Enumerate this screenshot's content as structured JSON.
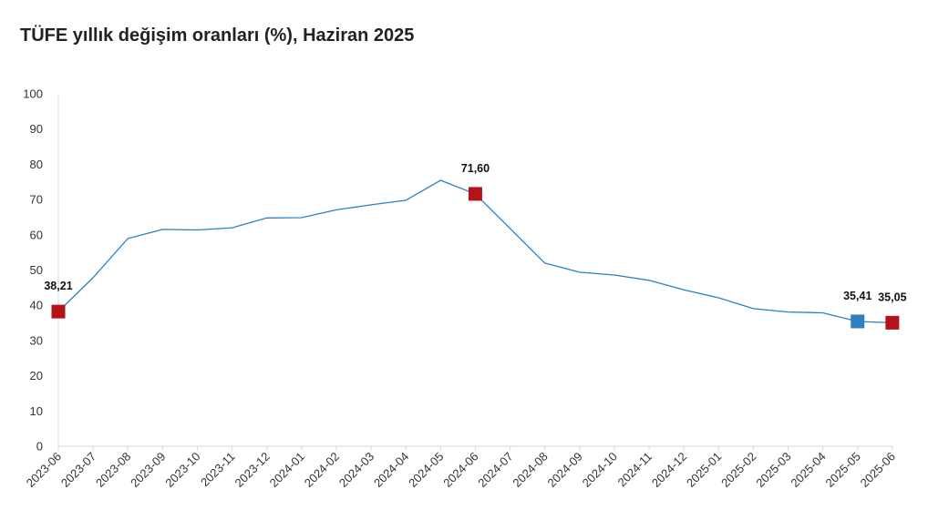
{
  "colors": {
    "line": "#2f7fc1",
    "highlight_red": "#b5121b",
    "highlight_blue": "#2f7fc1",
    "axis": "#d9d9d9"
  },
  "chart_data": {
    "type": "line",
    "title": "TÜFE yıllık değişim oranları (%), Haziran 2025",
    "xlabel": "",
    "ylabel": "",
    "ylim": [
      0,
      100
    ],
    "yticks": [
      0,
      10,
      20,
      30,
      40,
      50,
      60,
      70,
      80,
      90,
      100
    ],
    "grid": false,
    "categories": [
      "2023-06",
      "2023-07",
      "2023-08",
      "2023-09",
      "2023-10",
      "2023-11",
      "2023-12",
      "2024-01",
      "2024-02",
      "2024-03",
      "2024-04",
      "2024-05",
      "2024-06",
      "2024-07",
      "2024-08",
      "2024-09",
      "2024-10",
      "2024-11",
      "2024-12",
      "2025-01",
      "2025-02",
      "2025-03",
      "2025-04",
      "2025-05",
      "2025-06"
    ],
    "series": [
      {
        "values": [
          38.21,
          47.83,
          58.94,
          61.53,
          61.36,
          61.98,
          64.77,
          64.86,
          67.07,
          68.5,
          69.8,
          75.45,
          71.6,
          61.78,
          51.97,
          49.38,
          48.58,
          47.09,
          44.38,
          42.12,
          39.05,
          38.1,
          37.86,
          35.41,
          35.05
        ]
      }
    ],
    "highlights": [
      {
        "index": 0,
        "label": "38,21",
        "color": "red"
      },
      {
        "index": 12,
        "label": "71,60",
        "color": "red"
      },
      {
        "index": 23,
        "label": "35,41",
        "color": "blue"
      },
      {
        "index": 24,
        "label": "35,05",
        "color": "red"
      }
    ]
  }
}
